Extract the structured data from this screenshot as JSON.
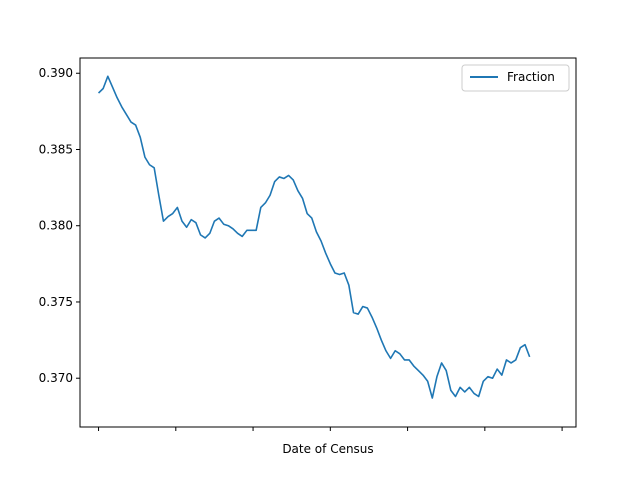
{
  "chart_data": {
    "type": "line",
    "title": "",
    "xlabel": "Date of Census",
    "ylabel": "",
    "ylim": [
      0.3668,
      0.391
    ],
    "yticks": [
      "0.370",
      "0.375",
      "0.380",
      "0.385",
      "0.390"
    ],
    "ytick_values": [
      0.37,
      0.375,
      0.38,
      0.385,
      0.39
    ],
    "xticks_count": 7,
    "xlim": [
      -0.04,
      1.03
    ],
    "grid": false,
    "legend_position": "top-right",
    "series": [
      {
        "name": "Fraction",
        "color": "#1f77b4",
        "points": [
          [
            0.0,
            0.3887
          ],
          [
            0.01,
            0.389
          ],
          [
            0.02,
            0.3898
          ],
          [
            0.03,
            0.3891
          ],
          [
            0.04,
            0.3884
          ],
          [
            0.05,
            0.3878
          ],
          [
            0.06,
            0.3873
          ],
          [
            0.07,
            0.3868
          ],
          [
            0.08,
            0.3866
          ],
          [
            0.09,
            0.3858
          ],
          [
            0.1,
            0.3845
          ],
          [
            0.11,
            0.384
          ],
          [
            0.12,
            0.3838
          ],
          [
            0.13,
            0.382
          ],
          [
            0.14,
            0.3803
          ],
          [
            0.15,
            0.3806
          ],
          [
            0.16,
            0.3808
          ],
          [
            0.17,
            0.3812
          ],
          [
            0.18,
            0.3803
          ],
          [
            0.19,
            0.3799
          ],
          [
            0.2,
            0.3804
          ],
          [
            0.21,
            0.3802
          ],
          [
            0.22,
            0.3794
          ],
          [
            0.23,
            0.3792
          ],
          [
            0.24,
            0.3795
          ],
          [
            0.25,
            0.3803
          ],
          [
            0.26,
            0.3805
          ],
          [
            0.27,
            0.3801
          ],
          [
            0.28,
            0.38
          ],
          [
            0.29,
            0.3798
          ],
          [
            0.3,
            0.3795
          ],
          [
            0.31,
            0.3793
          ],
          [
            0.32,
            0.3797
          ],
          [
            0.33,
            0.3797
          ],
          [
            0.34,
            0.3797
          ],
          [
            0.35,
            0.3812
          ],
          [
            0.36,
            0.3815
          ],
          [
            0.37,
            0.382
          ],
          [
            0.38,
            0.3829
          ],
          [
            0.39,
            0.3832
          ],
          [
            0.4,
            0.3831
          ],
          [
            0.41,
            0.3833
          ],
          [
            0.42,
            0.383
          ],
          [
            0.43,
            0.3823
          ],
          [
            0.44,
            0.3818
          ],
          [
            0.45,
            0.3808
          ],
          [
            0.46,
            0.3805
          ],
          [
            0.47,
            0.3796
          ],
          [
            0.48,
            0.379
          ],
          [
            0.49,
            0.3782
          ],
          [
            0.5,
            0.3775
          ],
          [
            0.51,
            0.3769
          ],
          [
            0.52,
            0.3768
          ],
          [
            0.53,
            0.3769
          ],
          [
            0.54,
            0.3761
          ],
          [
            0.55,
            0.3743
          ],
          [
            0.56,
            0.3742
          ],
          [
            0.57,
            0.3747
          ],
          [
            0.58,
            0.3746
          ],
          [
            0.59,
            0.374
          ],
          [
            0.6,
            0.3733
          ],
          [
            0.61,
            0.3725
          ],
          [
            0.62,
            0.3718
          ],
          [
            0.63,
            0.3713
          ],
          [
            0.64,
            0.3718
          ],
          [
            0.65,
            0.3716
          ],
          [
            0.66,
            0.3712
          ],
          [
            0.67,
            0.3712
          ],
          [
            0.68,
            0.3708
          ],
          [
            0.69,
            0.3705
          ],
          [
            0.7,
            0.3702
          ],
          [
            0.71,
            0.3698
          ],
          [
            0.72,
            0.3687
          ],
          [
            0.73,
            0.3701
          ],
          [
            0.74,
            0.371
          ],
          [
            0.75,
            0.3705
          ],
          [
            0.76,
            0.3692
          ],
          [
            0.77,
            0.3688
          ],
          [
            0.78,
            0.3694
          ],
          [
            0.79,
            0.3691
          ],
          [
            0.8,
            0.3694
          ],
          [
            0.81,
            0.369
          ],
          [
            0.82,
            0.3688
          ],
          [
            0.83,
            0.3698
          ],
          [
            0.84,
            0.3701
          ],
          [
            0.85,
            0.37
          ],
          [
            0.86,
            0.3706
          ],
          [
            0.87,
            0.3702
          ],
          [
            0.88,
            0.3712
          ],
          [
            0.89,
            0.371
          ],
          [
            0.9,
            0.3712
          ],
          [
            0.91,
            0.372
          ],
          [
            0.92,
            0.3722
          ],
          [
            0.93,
            0.3714
          ]
        ]
      }
    ]
  }
}
